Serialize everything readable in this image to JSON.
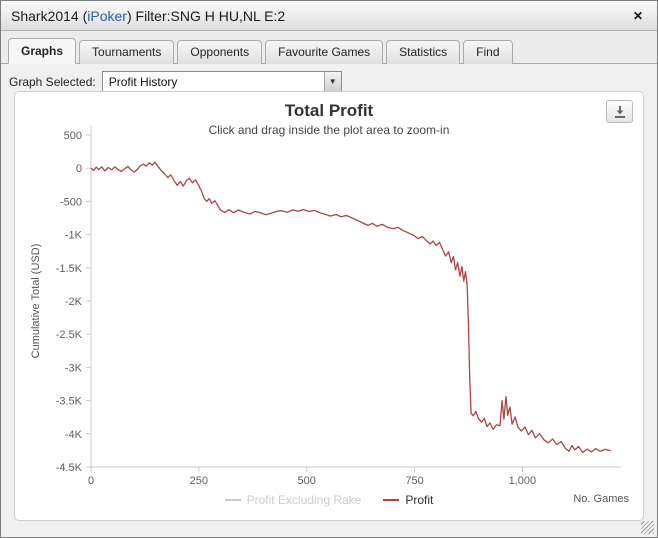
{
  "window": {
    "title_prefix": "Shark2014 (",
    "title_brand": "iPoker",
    "title_suffix": ") Filter:SNG H HU,NL E:2",
    "close_icon": "✕",
    "brand_color": "#2a5db0"
  },
  "tabs": [
    {
      "label": "Graphs",
      "active": true
    },
    {
      "label": "Tournaments",
      "active": false
    },
    {
      "label": "Opponents",
      "active": false
    },
    {
      "label": "Favourite Games",
      "active": false
    },
    {
      "label": "Statistics",
      "active": false
    },
    {
      "label": "Find",
      "active": false
    }
  ],
  "graph_selector": {
    "label": "Graph Selected:",
    "value": "Profit History",
    "arrow_icon": "▼"
  },
  "chart_data": {
    "type": "line",
    "title": "Total Profit",
    "subtitle": "Click and drag inside the plot area to zoom-in",
    "ylabel": "Cumulative Total (USD)",
    "xlabel": "No. Games",
    "xlim": [
      0,
      1210
    ],
    "ylim": [
      -4500,
      500
    ],
    "grid": false,
    "legend_position": "bottom",
    "xticks": [
      {
        "value": 0,
        "label": "0"
      },
      {
        "value": 250,
        "label": "250"
      },
      {
        "value": 500,
        "label": "500"
      },
      {
        "value": 750,
        "label": "750"
      },
      {
        "value": 1000,
        "label": "1,000"
      }
    ],
    "yticks": [
      {
        "value": 500,
        "label": "500"
      },
      {
        "value": 0,
        "label": "0"
      },
      {
        "value": -500,
        "label": "-500"
      },
      {
        "value": -1000,
        "label": "-1K"
      },
      {
        "value": -1500,
        "label": "-1.5K"
      },
      {
        "value": -2000,
        "label": "-2K"
      },
      {
        "value": -2500,
        "label": "-2.5K"
      },
      {
        "value": -3000,
        "label": "-3K"
      },
      {
        "value": -3500,
        "label": "-3.5K"
      },
      {
        "value": -4000,
        "label": "-4K"
      },
      {
        "value": -4500,
        "label": "-4.5K"
      }
    ],
    "legend": [
      {
        "name": "Profit Excluding Rake",
        "color": "#cccccc",
        "text_color": "#cccccc",
        "hidden": true
      },
      {
        "name": "Profit",
        "color": "#AA4643",
        "text_color": "#333333",
        "hidden": false
      }
    ],
    "series": [
      {
        "name": "Profit",
        "color": "#AA4643",
        "points": [
          [
            0,
            0
          ],
          [
            6,
            -35
          ],
          [
            12,
            15
          ],
          [
            18,
            -20
          ],
          [
            25,
            20
          ],
          [
            32,
            -40
          ],
          [
            40,
            10
          ],
          [
            48,
            -25
          ],
          [
            55,
            20
          ],
          [
            62,
            -15
          ],
          [
            70,
            -50
          ],
          [
            78,
            -10
          ],
          [
            85,
            25
          ],
          [
            92,
            -20
          ],
          [
            100,
            -60
          ],
          [
            108,
            -15
          ],
          [
            115,
            40
          ],
          [
            122,
            60
          ],
          [
            128,
            30
          ],
          [
            135,
            80
          ],
          [
            142,
            45
          ],
          [
            148,
            90
          ],
          [
            155,
            30
          ],
          [
            162,
            -30
          ],
          [
            170,
            -80
          ],
          [
            178,
            -140
          ],
          [
            185,
            -100
          ],
          [
            192,
            -180
          ],
          [
            200,
            -260
          ],
          [
            207,
            -200
          ],
          [
            214,
            -270
          ],
          [
            221,
            -190
          ],
          [
            228,
            -150
          ],
          [
            235,
            -220
          ],
          [
            242,
            -175
          ],
          [
            249,
            -250
          ],
          [
            256,
            -340
          ],
          [
            262,
            -450
          ],
          [
            268,
            -500
          ],
          [
            274,
            -460
          ],
          [
            280,
            -530
          ],
          [
            287,
            -490
          ],
          [
            294,
            -560
          ],
          [
            300,
            -630
          ],
          [
            310,
            -665
          ],
          [
            320,
            -625
          ],
          [
            330,
            -670
          ],
          [
            342,
            -630
          ],
          [
            355,
            -665
          ],
          [
            368,
            -690
          ],
          [
            380,
            -650
          ],
          [
            392,
            -668
          ],
          [
            405,
            -700
          ],
          [
            418,
            -678
          ],
          [
            430,
            -650
          ],
          [
            442,
            -640
          ],
          [
            455,
            -662
          ],
          [
            468,
            -628
          ],
          [
            480,
            -648
          ],
          [
            492,
            -622
          ],
          [
            505,
            -652
          ],
          [
            518,
            -635
          ],
          [
            530,
            -668
          ],
          [
            542,
            -695
          ],
          [
            555,
            -722
          ],
          [
            568,
            -698
          ],
          [
            580,
            -732
          ],
          [
            592,
            -712
          ],
          [
            605,
            -748
          ],
          [
            618,
            -788
          ],
          [
            630,
            -825
          ],
          [
            642,
            -862
          ],
          [
            652,
            -830
          ],
          [
            663,
            -875
          ],
          [
            675,
            -845
          ],
          [
            688,
            -892
          ],
          [
            700,
            -912
          ],
          [
            712,
            -892
          ],
          [
            724,
            -942
          ],
          [
            736,
            -975
          ],
          [
            748,
            -1012
          ],
          [
            758,
            -1060
          ],
          [
            768,
            -1028
          ],
          [
            778,
            -1092
          ],
          [
            786,
            -1142
          ],
          [
            793,
            -1098
          ],
          [
            800,
            -1162
          ],
          [
            808,
            -1118
          ],
          [
            815,
            -1225
          ],
          [
            822,
            -1322
          ],
          [
            829,
            -1258
          ],
          [
            835,
            -1425
          ],
          [
            840,
            -1330
          ],
          [
            845,
            -1532
          ],
          [
            850,
            -1418
          ],
          [
            855,
            -1625
          ],
          [
            860,
            -1480
          ],
          [
            864,
            -1702
          ],
          [
            868,
            -1558
          ],
          [
            872,
            -1760
          ],
          [
            875,
            -2400
          ],
          [
            878,
            -3200
          ],
          [
            881,
            -3690
          ],
          [
            886,
            -3730
          ],
          [
            892,
            -3665
          ],
          [
            898,
            -3765
          ],
          [
            905,
            -3825
          ],
          [
            912,
            -3768
          ],
          [
            918,
            -3892
          ],
          [
            925,
            -3838
          ],
          [
            932,
            -3935
          ],
          [
            940,
            -3865
          ],
          [
            948,
            -3880
          ],
          [
            953,
            -3500
          ],
          [
            957,
            -3780
          ],
          [
            962,
            -3440
          ],
          [
            966,
            -3720
          ],
          [
            971,
            -3598
          ],
          [
            976,
            -3855
          ],
          [
            983,
            -3745
          ],
          [
            990,
            -3905
          ],
          [
            998,
            -3958
          ],
          [
            1006,
            -3898
          ],
          [
            1014,
            -4012
          ],
          [
            1022,
            -3948
          ],
          [
            1030,
            -4062
          ],
          [
            1040,
            -3998
          ],
          [
            1050,
            -4092
          ],
          [
            1060,
            -4135
          ],
          [
            1070,
            -4078
          ],
          [
            1080,
            -4162
          ],
          [
            1090,
            -4118
          ],
          [
            1100,
            -4222
          ],
          [
            1108,
            -4262
          ],
          [
            1115,
            -4178
          ],
          [
            1122,
            -4242
          ],
          [
            1130,
            -4192
          ],
          [
            1140,
            -4282
          ],
          [
            1150,
            -4232
          ],
          [
            1160,
            -4272
          ],
          [
            1170,
            -4225
          ],
          [
            1180,
            -4262
          ],
          [
            1192,
            -4235
          ],
          [
            1205,
            -4255
          ]
        ]
      }
    ]
  }
}
